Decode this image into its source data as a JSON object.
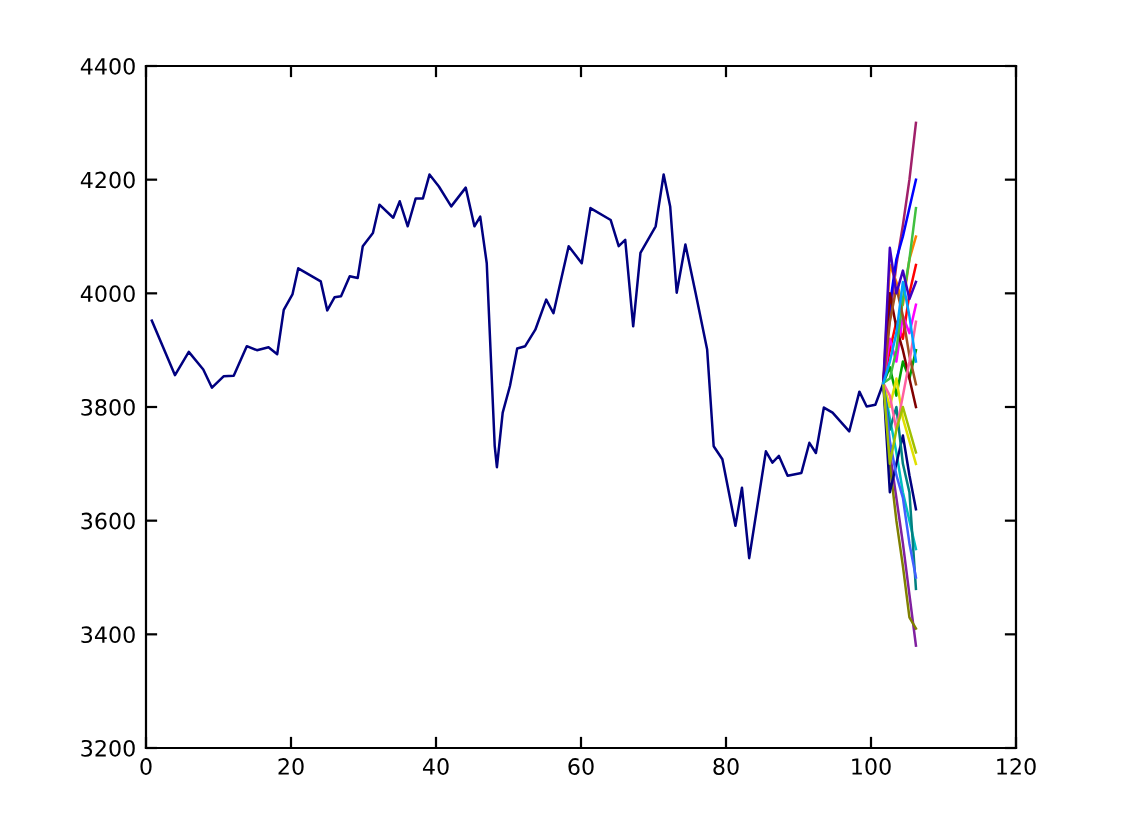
{
  "chart_data": {
    "type": "line",
    "xlim": [
      0,
      120
    ],
    "xticks": [
      0,
      20,
      40,
      60,
      80,
      100,
      120
    ],
    "ylim": [
      3200,
      4400
    ],
    "yticks": [
      3200,
      3400,
      3600,
      3800,
      4000,
      4200,
      4400
    ],
    "grid": false,
    "legend": false,
    "series": [
      {
        "color": "#000080",
        "x": [
          0.8,
          4,
          5.9,
          7.9,
          9.1,
          10.7,
          12.1,
          13.9,
          15.3,
          16.9,
          18.1,
          19,
          20.2,
          21,
          24.1,
          25,
          26,
          26.9,
          28.1,
          29.2,
          29.9,
          31.3,
          32.2,
          34.1,
          35,
          36.1,
          37.2,
          38.2,
          39.1,
          40.4,
          42.1,
          44.1,
          45.3,
          46.1,
          47,
          48.1,
          48.4,
          49.2,
          50.2,
          51.2,
          52.3,
          53.7,
          55.2,
          56.2,
          58.3,
          60.1,
          61.3,
          64.1,
          65.2,
          66.1,
          67.2,
          68.2,
          70.3,
          71.4,
          72.3,
          73.2,
          74.4,
          75.8,
          77.4,
          78.3,
          79.5,
          81.3,
          82.2,
          83.2,
          85.5,
          86.4,
          87.3,
          88.5,
          90.4,
          91.5,
          92.4,
          93.5,
          94.7,
          97,
          98.4,
          99.4,
          100.6,
          101.7
        ],
        "values": [
          3952,
          3856,
          3897,
          3866,
          3834,
          3854,
          3855,
          3907,
          3900,
          3905,
          3893,
          3971,
          3998,
          4044,
          4021,
          3970,
          3993,
          3995,
          4030,
          4027,
          4083,
          4106,
          4156,
          4133,
          4162,
          4118,
          4167,
          4167,
          4209,
          4188,
          4153,
          4186,
          4118,
          4135,
          4053,
          3731,
          3694,
          3790,
          3837,
          3903,
          3907,
          3936,
          3989,
          3965,
          4083,
          4053,
          4150,
          4129,
          4083,
          4094,
          3942,
          4071,
          4118,
          4209,
          4153,
          4001,
          4086,
          4001,
          3901,
          3731,
          3708,
          3591,
          3658,
          3534,
          3722,
          3702,
          3714,
          3679,
          3684,
          3737,
          3719,
          3799,
          3790,
          3757,
          3827,
          3801,
          3804,
          3842
        ]
      },
      {
        "color": "#a0206a",
        "x": [
          101.7,
          102.6,
          103.5,
          104.4,
          105.3,
          106.2
        ],
        "values": [
          3842,
          3960,
          4050,
          4120,
          4200,
          4300
        ]
      },
      {
        "color": "#8020a0",
        "x": [
          101.7,
          102.6,
          103.5,
          104.4,
          105.3,
          106.2
        ],
        "values": [
          3842,
          3720,
          3640,
          3560,
          3470,
          3380
        ]
      },
      {
        "color": "#808000",
        "x": [
          101.7,
          102.6,
          103.5,
          104.4,
          105.3,
          106.2
        ],
        "values": [
          3842,
          3700,
          3600,
          3520,
          3430,
          3410
        ]
      },
      {
        "color": "#0000ff",
        "x": [
          101.7,
          102.6,
          103.5,
          104.4,
          105.3,
          106.2
        ],
        "values": [
          3842,
          3980,
          4060,
          4100,
          4150,
          4200
        ]
      },
      {
        "color": "#ff0000",
        "x": [
          101.7,
          102.6,
          103.5,
          104.4,
          105.3,
          106.2
        ],
        "values": [
          3842,
          3900,
          3950,
          3920,
          4000,
          4050
        ]
      },
      {
        "color": "#00bfbf",
        "x": [
          101.7,
          102.6,
          103.5,
          104.4,
          105.3,
          106.2
        ],
        "values": [
          3842,
          3780,
          3720,
          3650,
          3600,
          3550
        ]
      },
      {
        "color": "#00a000",
        "x": [
          101.7,
          102.6,
          103.5,
          104.4,
          105.3,
          106.2
        ],
        "values": [
          3842,
          3870,
          3820,
          3880,
          3850,
          3900
        ]
      },
      {
        "color": "#ff8000",
        "x": [
          101.7,
          102.6,
          103.5,
          104.4,
          105.3,
          106.2
        ],
        "values": [
          3842,
          4050,
          4020,
          3980,
          4060,
          4100
        ]
      },
      {
        "color": "#000080",
        "x": [
          101.7,
          102.6,
          103.5,
          104.4,
          105.3,
          106.2
        ],
        "values": [
          3842,
          3650,
          3700,
          3750,
          3680,
          3620
        ]
      },
      {
        "color": "#e0e000",
        "x": [
          101.7,
          102.6,
          103.5,
          104.4,
          105.3,
          106.2
        ],
        "values": [
          3842,
          3800,
          3850,
          3780,
          3740,
          3700
        ]
      },
      {
        "color": "#ff00ff",
        "x": [
          101.7,
          102.6,
          103.5,
          104.4,
          105.3,
          106.2
        ],
        "values": [
          3842,
          3920,
          3880,
          3960,
          3930,
          3980
        ]
      },
      {
        "color": "#008080",
        "x": [
          101.7,
          102.6,
          103.5,
          104.4,
          105.3,
          106.2
        ],
        "values": [
          3842,
          3760,
          3800,
          3700,
          3650,
          3480
        ]
      },
      {
        "color": "#800000",
        "x": [
          101.7,
          102.6,
          103.5,
          104.4,
          105.3,
          106.2
        ],
        "values": [
          3842,
          4000,
          3940,
          3900,
          3850,
          3800
        ]
      },
      {
        "color": "#40c040",
        "x": [
          101.7,
          102.6,
          103.5,
          104.4,
          105.3,
          106.2
        ],
        "values": [
          3842,
          3850,
          3900,
          3990,
          4060,
          4150
        ]
      },
      {
        "color": "#4060ff",
        "x": [
          101.7,
          102.6,
          103.5,
          104.4,
          105.3,
          106.2
        ],
        "values": [
          3842,
          3740,
          3680,
          3640,
          3560,
          3500
        ]
      },
      {
        "color": "#a05020",
        "x": [
          101.7,
          102.6,
          103.5,
          104.4,
          105.3,
          106.2
        ],
        "values": [
          3842,
          3950,
          4010,
          3960,
          3890,
          3840
        ]
      },
      {
        "color": "#ff60a0",
        "x": [
          101.7,
          102.6,
          103.5,
          104.4,
          105.3,
          106.2
        ],
        "values": [
          3842,
          3820,
          3760,
          3820,
          3880,
          3950
        ]
      },
      {
        "color": "#4000c0",
        "x": [
          101.7,
          102.6,
          103.5,
          104.4,
          105.3,
          106.2
        ],
        "values": [
          3842,
          4080,
          4000,
          4040,
          3990,
          4020
        ]
      },
      {
        "color": "#a0c000",
        "x": [
          101.7,
          102.6,
          103.5,
          104.4,
          105.3,
          106.2
        ],
        "values": [
          3842,
          3700,
          3760,
          3800,
          3760,
          3720
        ]
      },
      {
        "color": "#00a0ff",
        "x": [
          101.7,
          102.6,
          103.5,
          104.4,
          105.3,
          106.2
        ],
        "values": [
          3842,
          3880,
          3930,
          4020,
          3960,
          3880
        ]
      }
    ]
  }
}
